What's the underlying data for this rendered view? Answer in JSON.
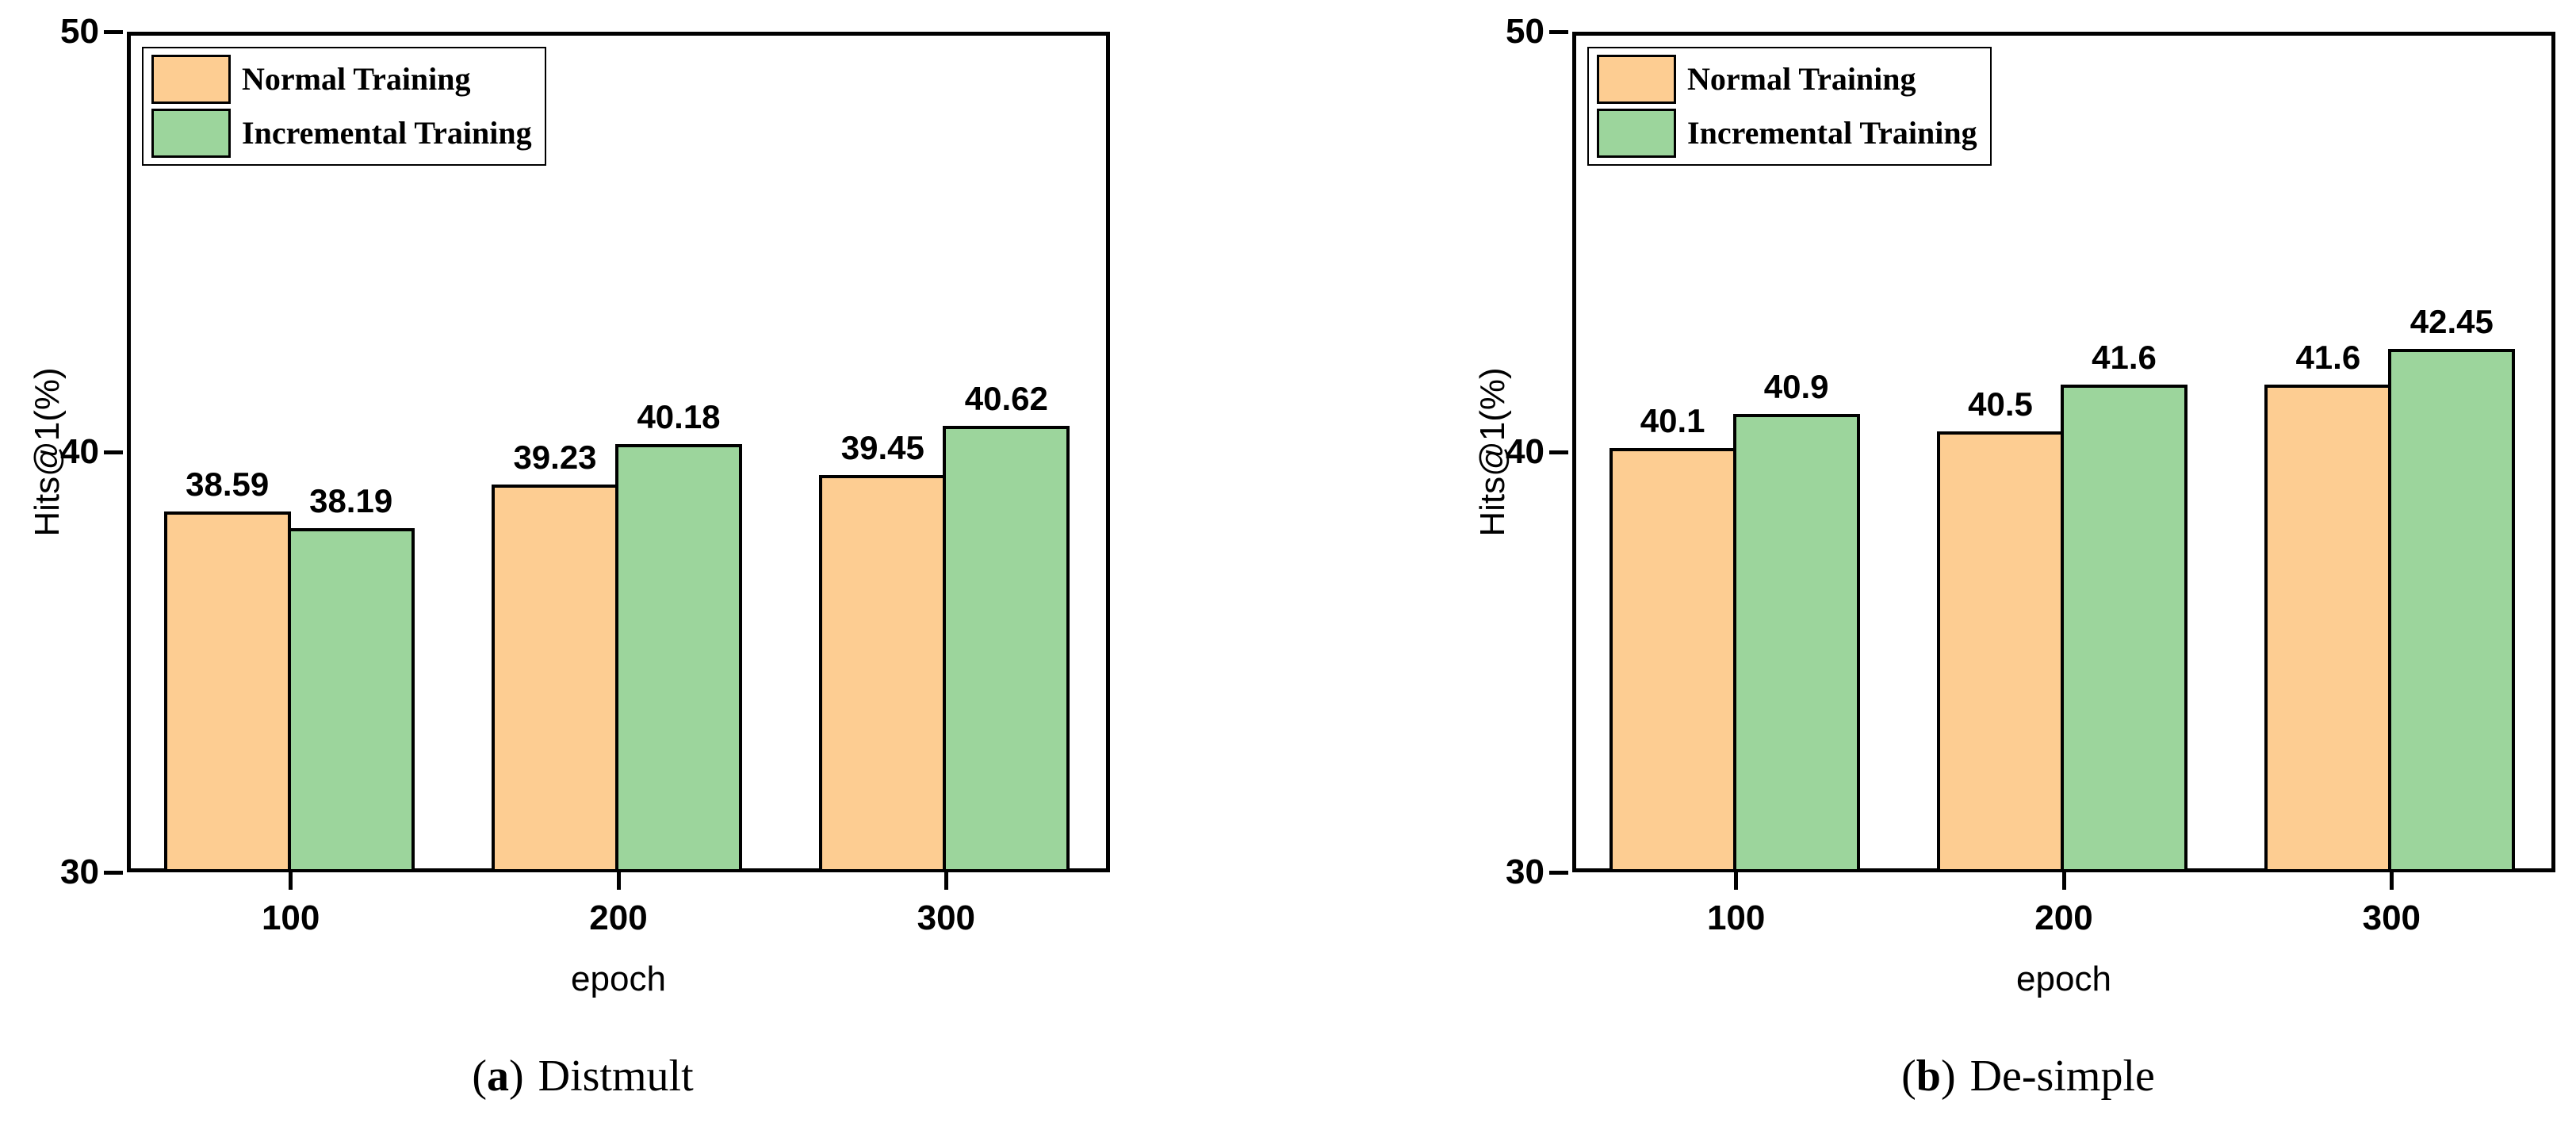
{
  "ink": "#000000",
  "background": "#ffffff",
  "legend": {
    "items": [
      {
        "label": "Normal Training",
        "color": "#FDCD92"
      },
      {
        "label": "Incremental Training",
        "color": "#9CD59C"
      }
    ]
  },
  "chart_data": [
    {
      "type": "bar",
      "caption": {
        "open": "(",
        "letter": "a",
        "close": ")",
        "title": "Distmult"
      },
      "xlabel": "epoch",
      "ylabel": "Hits@1(%)",
      "ylim": [
        30,
        50
      ],
      "yticks": [
        "30",
        "40",
        "50"
      ],
      "grid": false,
      "legend_position": "top-left",
      "categories": [
        "100",
        "200",
        "300"
      ],
      "series": [
        {
          "name": "Normal Training",
          "values": [
            38.59,
            39.23,
            39.45
          ],
          "labels": [
            "38.59",
            "39.23",
            "39.45"
          ]
        },
        {
          "name": "Incremental Training",
          "values": [
            38.19,
            40.18,
            40.62
          ],
          "labels": [
            "38.19",
            "40.18",
            "40.62"
          ]
        }
      ]
    },
    {
      "type": "bar",
      "caption": {
        "open": "(",
        "letter": "b",
        "close": ")",
        "title": "De-simple"
      },
      "xlabel": "epoch",
      "ylabel": "Hits@1(%)",
      "ylim": [
        30,
        50
      ],
      "yticks": [
        "30",
        "40",
        "50"
      ],
      "grid": false,
      "legend_position": "top-left",
      "categories": [
        "100",
        "200",
        "300"
      ],
      "series": [
        {
          "name": "Normal Training",
          "values": [
            40.1,
            40.5,
            41.6
          ],
          "labels": [
            "40.1",
            "40.5",
            "41.6"
          ]
        },
        {
          "name": "Incremental Training",
          "values": [
            40.9,
            41.6,
            42.45
          ],
          "labels": [
            "40.9",
            "41.6",
            "42.45"
          ]
        }
      ]
    }
  ]
}
